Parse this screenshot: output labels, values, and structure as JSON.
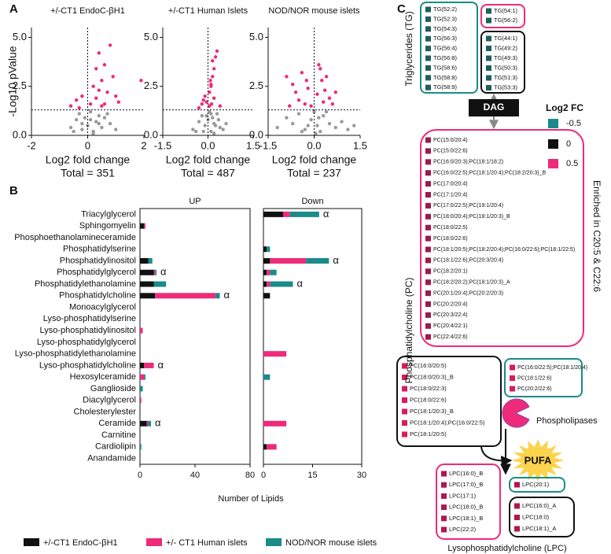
{
  "panels": {
    "a": "A",
    "b": "B"
  },
  "chart_data": [
    {
      "type": "scatter",
      "title": "+/-CT1 EndoC-βH1",
      "xlabel": "Log2 fold change",
      "subtitle": "Total = 351",
      "ylabel": "-Log10 pValue",
      "xlim": [
        -2,
        2
      ],
      "xticks": [
        -2,
        0,
        2
      ],
      "ylim": [
        0,
        5.5
      ],
      "yticks": [
        {
          "value": 0,
          "label": "0.0"
        },
        2.5,
        {
          "value": 5,
          "label": "5.0"
        }
      ],
      "hline": 1.3,
      "vline": 0,
      "series": [
        {
          "color": "#999999",
          "x": [
            -0.6,
            -0.4,
            -0.3,
            -0.2,
            -0.1,
            0,
            0.1,
            0.2,
            0.3,
            0.4,
            0.5,
            0.6,
            0.8,
            1.0,
            -0.5,
            0.2,
            0.4,
            0.7,
            -0.2,
            0.1
          ],
          "values": [
            0.4,
            0.8,
            1.1,
            0.3,
            0.9,
            0.5,
            1.2,
            0.2,
            0.7,
            1.0,
            0.4,
            0.9,
            0.6,
            0.3,
            0.2,
            0.1,
            0.6,
            1.1,
            0.6,
            0.8
          ]
        },
        {
          "color": "#ee2a7b",
          "x": [
            -0.6,
            -0.4,
            -0.2,
            0.1,
            0.2,
            0.3,
            0.4,
            0.5,
            0.6,
            0.7,
            0.8,
            1.0,
            1.1,
            1.9,
            0.5,
            0.3,
            -0.3,
            0.9,
            0.6,
            0.4
          ],
          "values": [
            1.5,
            1.8,
            2.0,
            1.6,
            2.5,
            3.4,
            4.2,
            2.8,
            3.6,
            2.2,
            4.6,
            2.0,
            1.7,
            2.8,
            1.5,
            1.9,
            1.4,
            3.0,
            1.6,
            2.3
          ]
        }
      ]
    },
    {
      "type": "scatter",
      "title": "+/-CT1 Human Islets",
      "xlabel": "Log2 fold change",
      "subtitle": "Total = 487",
      "xlim": [
        -1.5,
        1.5
      ],
      "xticks": [
        -1.5,
        {
          "value": 0,
          "label": "0.0"
        },
        1.5
      ],
      "ylim": [
        0,
        5.5
      ],
      "yticks": [
        {
          "value": 0,
          "label": "0.0"
        },
        2.5,
        {
          "value": 5,
          "label": "5.0"
        }
      ],
      "hline": 1.3,
      "vline": 0,
      "series": [
        {
          "color": "#999999",
          "x": [
            -0.5,
            -0.3,
            -0.2,
            -0.1,
            0,
            0.05,
            0.1,
            0.15,
            0.2,
            0.3,
            0.4,
            0.5,
            -0.15,
            0.25,
            0.6,
            -0.05,
            0.1,
            0.35,
            -0.4,
            0.2
          ],
          "values": [
            0.3,
            0.7,
            1.0,
            0.5,
            0.8,
            1.2,
            0.2,
            0.9,
            0.6,
            1.1,
            0.4,
            0.3,
            0.2,
            0.5,
            0.6,
            1.0,
            1.1,
            0.8,
            0.2,
            0.1
          ]
        },
        {
          "color": "#ee2a7b",
          "x": [
            -0.3,
            -0.2,
            -0.15,
            -0.1,
            0.05,
            0.1,
            0.15,
            0.2,
            0.25,
            0.3,
            0.1,
            0.05,
            -0.05,
            0.2,
            0.15,
            0.4,
            0.08,
            0.12
          ],
          "values": [
            1.4,
            1.6,
            1.8,
            2.0,
            2.2,
            2.6,
            3.0,
            3.4,
            4.0,
            4.3,
            2.5,
            1.5,
            1.7,
            1.9,
            3.8,
            1.5,
            2.8,
            1.6
          ]
        }
      ]
    },
    {
      "type": "scatter",
      "title": "NOD/NOR mouse islets",
      "xlabel": "Log2 fold change",
      "subtitle": "Total = 237",
      "xlim": [
        -1.5,
        1.5
      ],
      "xticks": [
        -1.5,
        {
          "value": 0,
          "label": "0.0"
        },
        1.5
      ],
      "ylim": [
        0,
        5.5
      ],
      "yticks": [
        {
          "value": 0,
          "label": "0.0"
        },
        2.5,
        {
          "value": 5,
          "label": "5.0"
        }
      ],
      "hline": 1.3,
      "vline": 0,
      "series": [
        {
          "color": "#999999",
          "x": [
            -1.2,
            -0.9,
            -0.7,
            -0.5,
            -0.3,
            -0.1,
            0,
            0.1,
            0.2,
            0.3,
            0.5,
            0.7,
            0.9,
            1.1,
            1.3,
            -0.2,
            0.15,
            0.4,
            -0.4,
            0.05
          ],
          "values": [
            0.4,
            0.9,
            0.6,
            1.1,
            0.3,
            0.8,
            1.2,
            0.5,
            0.2,
            1.0,
            0.6,
            0.4,
            0.7,
            0.3,
            0.5,
            0.5,
            0.9,
            1.2,
            0.2,
            0.1
          ]
        },
        {
          "color": "#ee2a7b",
          "x": [
            -0.9,
            -0.7,
            -0.6,
            -0.5,
            -0.4,
            -0.3,
            -0.2,
            -0.1,
            0.1,
            0.2,
            0.25,
            0.3,
            0.35,
            0.4,
            0.5,
            0.6,
            0.7,
            -0.8,
            0.15,
            -0.25
          ],
          "values": [
            3.0,
            2.6,
            2.2,
            1.8,
            3.2,
            1.6,
            2.4,
            1.5,
            2.1,
            3.4,
            2.8,
            1.7,
            2.3,
            3.0,
            1.9,
            1.6,
            2.2,
            1.5,
            3.6,
            2.8
          ]
        }
      ]
    },
    {
      "type": "bar",
      "orientation": "horizontal",
      "stacked": true,
      "title": "UP",
      "xlabel": "Number of Lipids",
      "categories": [
        "Triacylglycerol",
        "Sphingomyelin",
        "Phosphoethanolamineceramide",
        "Phosphatidylserine",
        "Phosphatidylinositol",
        "Phosphatidylglycerol",
        "Phosphatidylethanolamine",
        "Phosphatidylcholine",
        "Monoacylglycerol",
        "Lyso-phosphatidylserine",
        "Lyso-phosphatidylinositol",
        "Lyso-phosphatidylglycerol",
        "Lyso-phosphatidylethanolamine",
        "Lyso-phosphatidylcholine",
        "Hexosylceramide",
        "Ganglioside",
        "Diacylglycerol",
        "Cholesterylester",
        "Ceramide",
        "Carnitine",
        "Cardiolipin",
        "Anandamide"
      ],
      "xlim": [
        0,
        80
      ],
      "xticks": [
        0,
        40,
        80
      ],
      "series": [
        {
          "name": "+/-CT1 EndoC-βH1",
          "color": "#111111",
          "values": [
            0,
            3,
            0,
            0,
            6,
            10,
            10,
            11,
            0,
            0,
            0,
            0,
            0,
            3,
            0,
            0,
            0,
            0,
            5,
            0,
            0,
            0
          ]
        },
        {
          "name": "+/- CT1 Human islets",
          "color": "#ee2a7b",
          "values": [
            0,
            1,
            0,
            0,
            0,
            1,
            0,
            44,
            0,
            0,
            2,
            0,
            0,
            7,
            3,
            0,
            1,
            0,
            1,
            0,
            0,
            0
          ]
        },
        {
          "name": "NOD/NOR mouse islets",
          "color": "#1b8a8a",
          "values": [
            0,
            0,
            0,
            0,
            3,
            1,
            9,
            3,
            0,
            0,
            0,
            0,
            0,
            0,
            1,
            2,
            0,
            0,
            2,
            0,
            1,
            0
          ]
        }
      ],
      "annotations": [
        {
          "text": "α",
          "category": "Phosphatidylglycerol"
        },
        {
          "text": "α",
          "category": "Phosphatidylcholine"
        },
        {
          "text": "α",
          "category": "Lyso-phosphatidylcholine"
        },
        {
          "text": "α",
          "category": "Ceramide"
        }
      ]
    },
    {
      "type": "bar",
      "orientation": "horizontal",
      "stacked": true,
      "title": "Down",
      "xlim": [
        0,
        30
      ],
      "xticks": [
        0,
        15,
        30
      ],
      "series": [
        {
          "color": "#111111",
          "values": [
            6,
            0,
            0,
            1,
            2,
            1,
            1,
            2,
            0,
            0,
            0,
            0,
            0,
            0,
            0,
            0,
            0,
            0,
            0,
            0,
            1,
            0
          ]
        },
        {
          "color": "#ee2a7b",
          "values": [
            2,
            0,
            0,
            0,
            11,
            1,
            1,
            0,
            0,
            0,
            0,
            0,
            7,
            0,
            0,
            0,
            0,
            0,
            7,
            0,
            3,
            0
          ]
        },
        {
          "color": "#1b8a8a",
          "values": [
            9,
            0,
            0,
            1,
            7,
            2,
            7,
            0,
            0,
            0,
            0,
            0,
            0,
            0,
            2,
            0,
            0,
            0,
            0,
            0,
            0,
            0
          ]
        }
      ],
      "annotations": [
        {
          "text": "α",
          "category": "Triacylglycerol"
        },
        {
          "text": "α",
          "category": "Phosphatidylinositol"
        },
        {
          "text": "α",
          "category": "Phosphatidylethanolamine"
        }
      ]
    }
  ],
  "diagram": {
    "panel_label": "C",
    "legend": {
      "title": "Log2 FC",
      "values": [
        -0.5,
        0,
        0.5
      ],
      "colors": [
        "#1b8a8a",
        "#111111",
        "#ee2a7b"
      ]
    },
    "tg": {
      "label": "Triglycerides (TG)",
      "boxes": [
        [
          "TG(52:2)",
          "TG(52:3)",
          "TG(54:3)",
          "TG(56:3)",
          "TG(56:4)",
          "TG(56:8)",
          "TG(58:6)",
          "TG(58:8)",
          "TG(58:9)"
        ],
        [
          "TG(54:1)",
          "TG(56:2)"
        ],
        [
          "TG(44:1)",
          "TG(49:2)",
          "TG(49:3)",
          "TG(50:3)",
          "TG(51:3)",
          "TG(53:3)"
        ]
      ]
    },
    "dag": "DAG",
    "pc": {
      "label": "Phosphatidylcholine (PC)",
      "note": "Enriched in C20:5 & C22:6",
      "boxes": [
        [
          "PC(15:0/20:4)",
          "PC(15:0/22:6)",
          "PC(16:0/20:3);PC(18:1/18:2)",
          "PC(16:0/22:5);PC(18:1/20:4);PC(18:2/20:3)_B",
          "PC(17:0/20:4)",
          "PC(17:1/20:4)",
          "PC(17:0/22:5);PC(19:1/20:4)",
          "PC(18:0/20:4);PC(18:1/20:3)_B",
          "PC(18:0/22:5)",
          "PC(18:0/22:6)",
          "PC(18:1/20:5);PC(18:2/20:4);PC(16:0/22:6);PC(16:1/22:5)",
          "PC(18:1/22:6);PC(20:3/20:4)",
          "PC(18:2/20:1)",
          "PC(18:2/20:2);PC(18:1/20:3)_A",
          "PC(20:1/20:4);PC(20:2/20:3)",
          "PC(20:2/20:4)",
          "PC(20:3/22:4)",
          "PC(20:4/22:1)",
          "PC(22:4/22:6)"
        ],
        [
          "PC(16:0/20:5)",
          "PC(18:0/20:3)_B",
          "PC(18:0/22:3)",
          "PC(18:0/22:6)",
          "PC(18:1/20:3)_B",
          "PC(18:1/20:4);PC(16:0/22:5)",
          "PC(18:1/20:5)"
        ],
        [
          "PC(16:0/22:5);PC(18:1/20:4)",
          "PC(18:1/22:6)",
          "PC(20:2/22:6)"
        ]
      ]
    },
    "phospholipases": "Phospholipases",
    "pufa": "PUFA",
    "lpc": {
      "label": "Lysophosphatidylcholine (LPC)",
      "boxes": [
        [
          "LPC(16:0)_B",
          "LPC(17:0)_B",
          "LPC(17:1)",
          "LPC(18:0)_B",
          "LPC(18:1)_B",
          "LPC(22:2)"
        ],
        [
          "LPC(20:1)"
        ],
        [
          "LPC(16:0)_A",
          "LPC(18:0)",
          "LPC(18:1)_A"
        ]
      ]
    }
  }
}
